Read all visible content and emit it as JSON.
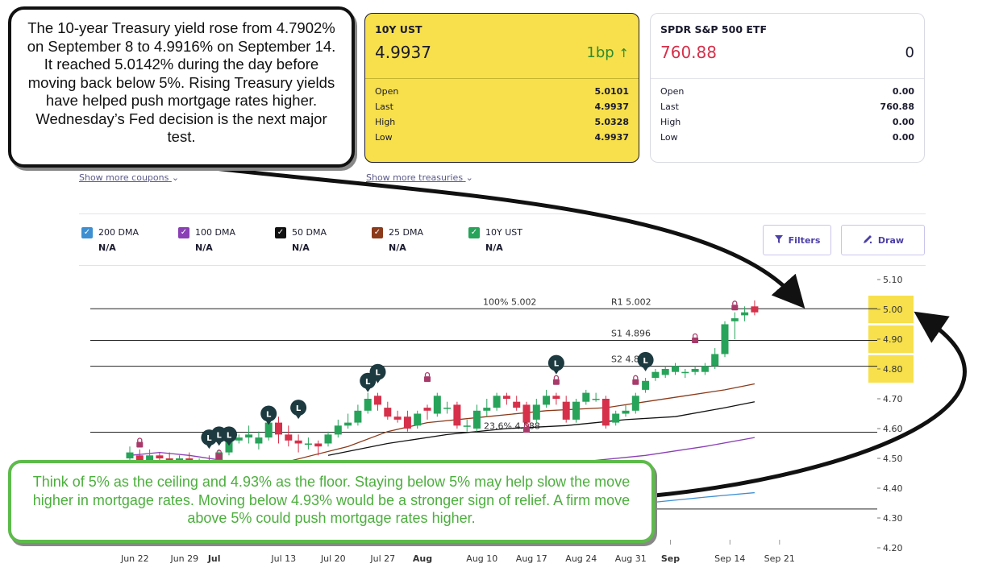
{
  "cards": {
    "ust": {
      "symbol": "10Y UST",
      "price": "4.9937",
      "change": "1bp",
      "change_icon": "arrow-up-icon",
      "rows": [
        {
          "label": "Open",
          "value": "5.0101"
        },
        {
          "label": "Last",
          "value": "4.9937"
        },
        {
          "label": "High",
          "value": "5.0328"
        },
        {
          "label": "Low",
          "value": "4.9937"
        }
      ]
    },
    "spy": {
      "symbol": "SPDR S&P 500 ETF",
      "price": "760.88",
      "change": "0",
      "rows": [
        {
          "label": "Open",
          "value": "0.00"
        },
        {
          "label": "Last",
          "value": "760.88"
        },
        {
          "label": "High",
          "value": "0.00"
        },
        {
          "label": "Low",
          "value": "0.00"
        }
      ]
    }
  },
  "links": {
    "coupons": "Show more coupons",
    "treasuries": "Show more treasuries"
  },
  "legend": [
    {
      "name": "200 DMA",
      "value": "N/A",
      "color": "#3d8fd1"
    },
    {
      "name": "100 DMA",
      "value": "N/A",
      "color": "#8a3fb5"
    },
    {
      "name": "50 DMA",
      "value": "N/A",
      "color": "#111111"
    },
    {
      "name": "25 DMA",
      "value": "N/A",
      "color": "#8b3a1a"
    },
    {
      "name": "10Y UST",
      "value": "N/A",
      "color": "#27a35a"
    }
  ],
  "buttons": {
    "filters": "Filters",
    "draw": "Draw"
  },
  "callouts": {
    "top": "The 10-year Treasury yield rose from 4.7902% on September 8 to 4.9916% on September 14. It reached 5.0142% during the day before moving back below 5%. Rising Treasury yields have helped push mortgage rates higher. Wednesday’s Fed decision is the next major test.",
    "bottom": "Think of 5% as the ceiling and 4.93% as the floor. Staying below 5% may help slow the move higher in mortgage rates. Moving below 4.93% would be a stronger sign of relief. A firm move above 5% could push mortgage rates higher."
  },
  "colors": {
    "up": "#27a35a",
    "down": "#d6304a",
    "highlight": "#f7e04b",
    "badge": "#1c3a40",
    "lock": "#a83a6a"
  },
  "chart_data": {
    "type": "candlestick",
    "title": "",
    "ylim": [
      4.2,
      5.1
    ],
    "y_ticks": [
      "5.10",
      "5.00",
      "4.90",
      "4.80",
      "4.70",
      "4.60",
      "4.50",
      "4.40",
      "4.30",
      "4.20"
    ],
    "y_highlight": [
      "5.00",
      "4.90",
      "4.80"
    ],
    "x_ticks": [
      {
        "label": "Jun 22",
        "bold": false,
        "i": 1
      },
      {
        "label": "Jun 29",
        "bold": false,
        "i": 6
      },
      {
        "label": "Jul",
        "bold": true,
        "i": 9
      },
      {
        "label": "Jul 13",
        "bold": false,
        "i": 16
      },
      {
        "label": "Jul 20",
        "bold": false,
        "i": 21
      },
      {
        "label": "Jul 27",
        "bold": false,
        "i": 26
      },
      {
        "label": "Aug",
        "bold": true,
        "i": 30
      },
      {
        "label": "Aug 10",
        "bold": false,
        "i": 36
      },
      {
        "label": "Aug 17",
        "bold": false,
        "i": 41
      },
      {
        "label": "Aug 24",
        "bold": false,
        "i": 46
      },
      {
        "label": "Aug 31",
        "bold": false,
        "i": 51
      },
      {
        "label": "Sep",
        "bold": true,
        "i": 55
      },
      {
        "label": "Sep 14",
        "bold": false,
        "i": 61
      },
      {
        "label": "Sep 21",
        "bold": false,
        "i": 66
      }
    ],
    "levels": [
      {
        "value": 5.002,
        "label": "R1 5.002"
      },
      {
        "value": 4.896,
        "label": "S1 4.896"
      },
      {
        "value": 4.809,
        "label": "S2 4.809"
      },
      {
        "value": 4.588,
        "label": "23.6% 4.588"
      },
      {
        "value": 4.33,
        "label": ""
      }
    ],
    "fib_top_label": "100% 5.002",
    "candles": [
      [
        4.5,
        4.52,
        4.54,
        4.48
      ],
      [
        4.51,
        4.49,
        4.53,
        4.47
      ],
      [
        4.49,
        4.51,
        4.53,
        4.47
      ],
      [
        4.51,
        4.5,
        4.52,
        4.48
      ],
      [
        4.5,
        4.49,
        4.52,
        4.47
      ],
      [
        4.49,
        4.5,
        4.51,
        4.47
      ],
      [
        4.5,
        4.48,
        4.52,
        4.46
      ],
      [
        4.48,
        4.49,
        4.5,
        4.46
      ],
      [
        4.49,
        4.47,
        4.51,
        4.45
      ],
      [
        4.47,
        4.52,
        4.53,
        4.46
      ],
      [
        4.52,
        4.56,
        4.6,
        4.51
      ],
      [
        4.56,
        4.57,
        4.58,
        4.55
      ],
      [
        4.57,
        4.58,
        4.61,
        4.55
      ],
      [
        4.55,
        4.57,
        4.59,
        4.53
      ],
      [
        4.57,
        4.62,
        4.63,
        4.56
      ],
      [
        4.62,
        4.58,
        4.64,
        4.55
      ],
      [
        4.58,
        4.56,
        4.61,
        4.54
      ],
      [
        4.56,
        4.55,
        4.58,
        4.52
      ],
      [
        4.55,
        4.55,
        4.57,
        4.53
      ],
      [
        4.55,
        4.54,
        4.56,
        4.51
      ],
      [
        4.55,
        4.58,
        4.59,
        4.54
      ],
      [
        4.58,
        4.61,
        4.63,
        4.57
      ],
      [
        4.61,
        4.62,
        4.65,
        4.6
      ],
      [
        4.62,
        4.66,
        4.68,
        4.61
      ],
      [
        4.66,
        4.7,
        4.72,
        4.65
      ],
      [
        4.71,
        4.68,
        4.72,
        4.66
      ],
      [
        4.67,
        4.64,
        4.69,
        4.63
      ],
      [
        4.64,
        4.63,
        4.66,
        4.62
      ],
      [
        4.64,
        4.6,
        4.66,
        4.59
      ],
      [
        4.61,
        4.65,
        4.66,
        4.6
      ],
      [
        4.67,
        4.66,
        4.68,
        4.63
      ],
      [
        4.65,
        4.71,
        4.72,
        4.64
      ],
      [
        4.67,
        4.67,
        4.69,
        4.65
      ],
      [
        4.68,
        4.61,
        4.69,
        4.6
      ],
      [
        4.61,
        4.61,
        4.63,
        4.59
      ],
      [
        4.6,
        4.66,
        4.68,
        4.59
      ],
      [
        4.66,
        4.67,
        4.7,
        4.64
      ],
      [
        4.67,
        4.71,
        4.72,
        4.66
      ],
      [
        4.71,
        4.7,
        4.72,
        4.68
      ],
      [
        4.69,
        4.67,
        4.71,
        4.66
      ],
      [
        4.68,
        4.62,
        4.69,
        4.6
      ],
      [
        4.63,
        4.68,
        4.7,
        4.62
      ],
      [
        4.68,
        4.71,
        4.73,
        4.67
      ],
      [
        4.71,
        4.7,
        4.72,
        4.68
      ],
      [
        4.69,
        4.63,
        4.71,
        4.62
      ],
      [
        4.63,
        4.69,
        4.7,
        4.62
      ],
      [
        4.69,
        4.72,
        4.73,
        4.68
      ],
      [
        4.7,
        4.7,
        4.72,
        4.69
      ],
      [
        4.7,
        4.61,
        4.71,
        4.6
      ],
      [
        4.62,
        4.65,
        4.66,
        4.61
      ],
      [
        4.65,
        4.66,
        4.68,
        4.64
      ],
      [
        4.66,
        4.71,
        4.72,
        4.65
      ],
      [
        4.73,
        4.76,
        4.77,
        4.72
      ],
      [
        4.77,
        4.79,
        4.8,
        4.76
      ],
      [
        4.78,
        4.8,
        4.81,
        4.77
      ],
      [
        4.79,
        4.81,
        4.82,
        4.78
      ],
      [
        4.79,
        4.79,
        4.8,
        4.77
      ],
      [
        4.79,
        4.8,
        4.81,
        4.78
      ],
      [
        4.79,
        4.81,
        4.82,
        4.78
      ],
      [
        4.81,
        4.85,
        4.87,
        4.8
      ],
      [
        4.85,
        4.95,
        4.96,
        4.84
      ],
      [
        4.96,
        4.97,
        4.99,
        4.9
      ],
      [
        4.98,
        4.99,
        5.01,
        4.96
      ],
      [
        5.01,
        4.99,
        5.03,
        4.98
      ]
    ],
    "ma": [
      {
        "name": "25 DMA",
        "color": "#8b3a1a",
        "values": [
          [
            16,
            4.49
          ],
          [
            22,
            4.54
          ],
          [
            26,
            4.59
          ],
          [
            30,
            4.62
          ],
          [
            36,
            4.64
          ],
          [
            42,
            4.66
          ],
          [
            48,
            4.67
          ],
          [
            52,
            4.69
          ],
          [
            56,
            4.71
          ],
          [
            60,
            4.73
          ],
          [
            63,
            4.75
          ]
        ]
      },
      {
        "name": "50 DMA",
        "color": "#111111",
        "values": [
          [
            20,
            4.51
          ],
          [
            26,
            4.55
          ],
          [
            32,
            4.58
          ],
          [
            38,
            4.6
          ],
          [
            44,
            4.61
          ],
          [
            50,
            4.63
          ],
          [
            55,
            4.64
          ],
          [
            60,
            4.67
          ],
          [
            63,
            4.69
          ]
        ]
      },
      {
        "name": "100 DMA",
        "color": "#8a3fb5",
        "values": [
          [
            0,
            4.51
          ],
          [
            3,
            4.52
          ],
          [
            6,
            4.51
          ],
          [
            10,
            4.49
          ],
          [
            40,
            4.47
          ],
          [
            52,
            4.51
          ],
          [
            58,
            4.54
          ],
          [
            63,
            4.57
          ]
        ]
      },
      {
        "name": "200 DMA",
        "color": "#3d8fd1",
        "values": [
          [
            44,
            4.33
          ],
          [
            52,
            4.35
          ],
          [
            58,
            4.37
          ],
          [
            63,
            4.385
          ]
        ]
      }
    ],
    "badges_L": [
      [
        8,
        4.57
      ],
      [
        9,
        4.58
      ],
      [
        10,
        4.58
      ],
      [
        14,
        4.65
      ],
      [
        17,
        4.67
      ],
      [
        24,
        4.76
      ],
      [
        25,
        4.79
      ],
      [
        43,
        4.82
      ],
      [
        52,
        4.83
      ]
    ],
    "locks": [
      [
        1,
        4.55
      ],
      [
        9,
        4.51
      ],
      [
        30,
        4.77
      ],
      [
        40,
        4.6
      ],
      [
        43,
        4.76
      ],
      [
        51,
        4.76
      ],
      [
        57,
        4.9
      ],
      [
        61,
        5.01
      ]
    ]
  }
}
